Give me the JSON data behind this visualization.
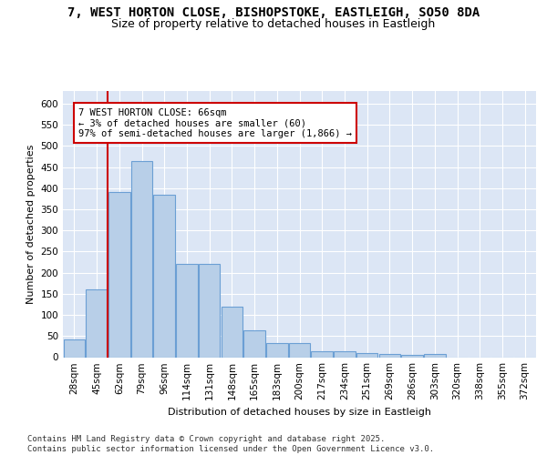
{
  "title_line1": "7, WEST HORTON CLOSE, BISHOPSTOKE, EASTLEIGH, SO50 8DA",
  "title_line2": "Size of property relative to detached houses in Eastleigh",
  "xlabel": "Distribution of detached houses by size in Eastleigh",
  "ylabel": "Number of detached properties",
  "categories": [
    "28sqm",
    "45sqm",
    "62sqm",
    "79sqm",
    "96sqm",
    "114sqm",
    "131sqm",
    "148sqm",
    "165sqm",
    "183sqm",
    "200sqm",
    "217sqm",
    "234sqm",
    "251sqm",
    "269sqm",
    "286sqm",
    "303sqm",
    "320sqm",
    "338sqm",
    "355sqm",
    "372sqm"
  ],
  "values": [
    43,
    160,
    390,
    465,
    385,
    220,
    220,
    120,
    63,
    33,
    33,
    15,
    15,
    10,
    8,
    5,
    7,
    0,
    0,
    0,
    0
  ],
  "bar_color": "#b8cfe8",
  "bar_edge_color": "#6b9fd4",
  "vline_color": "#cc0000",
  "annotation_box_text": "7 WEST HORTON CLOSE: 66sqm\n← 3% of detached houses are smaller (60)\n97% of semi-detached houses are larger (1,866) →",
  "box_color": "#cc0000",
  "ylim": [
    0,
    630
  ],
  "yticks": [
    0,
    50,
    100,
    150,
    200,
    250,
    300,
    350,
    400,
    450,
    500,
    550,
    600
  ],
  "plot_bg_color": "#dce6f5",
  "grid_color": "#ffffff",
  "footer_text": "Contains HM Land Registry data © Crown copyright and database right 2025.\nContains public sector information licensed under the Open Government Licence v3.0.",
  "title_fontsize": 10,
  "subtitle_fontsize": 9,
  "axis_label_fontsize": 8,
  "tick_fontsize": 7.5,
  "annotation_fontsize": 7.5,
  "footer_fontsize": 6.5
}
